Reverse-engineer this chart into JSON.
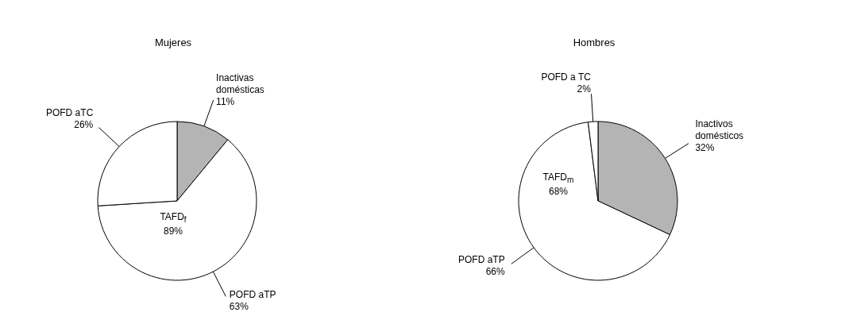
{
  "chart_data": [
    {
      "type": "pie",
      "title": "Mujeres",
      "categories": [
        "Inactivas domésticas",
        "POFD aTP",
        "POFD aTC"
      ],
      "values": [
        11,
        63,
        26
      ],
      "value_labels": [
        "11%",
        "63%",
        "26%"
      ],
      "colors": [
        "#b4b4b4",
        "#ffffff",
        "#ffffff"
      ],
      "annotations": [
        "TAFD$_{f}$\n89%"
      ],
      "legend": false
    },
    {
      "type": "pie",
      "title": "Hombres",
      "categories": [
        "Inactivos domésticos",
        "POFD aTP",
        "POFD a TC"
      ],
      "values": [
        32,
        66,
        2
      ],
      "value_labels": [
        "32%",
        "66%",
        "2%"
      ],
      "colors": [
        "#b4b4b4",
        "#ffffff",
        "#ffffff"
      ],
      "annotations": [
        "TAFD$_{m}$\n68%"
      ],
      "legend": false
    }
  ]
}
